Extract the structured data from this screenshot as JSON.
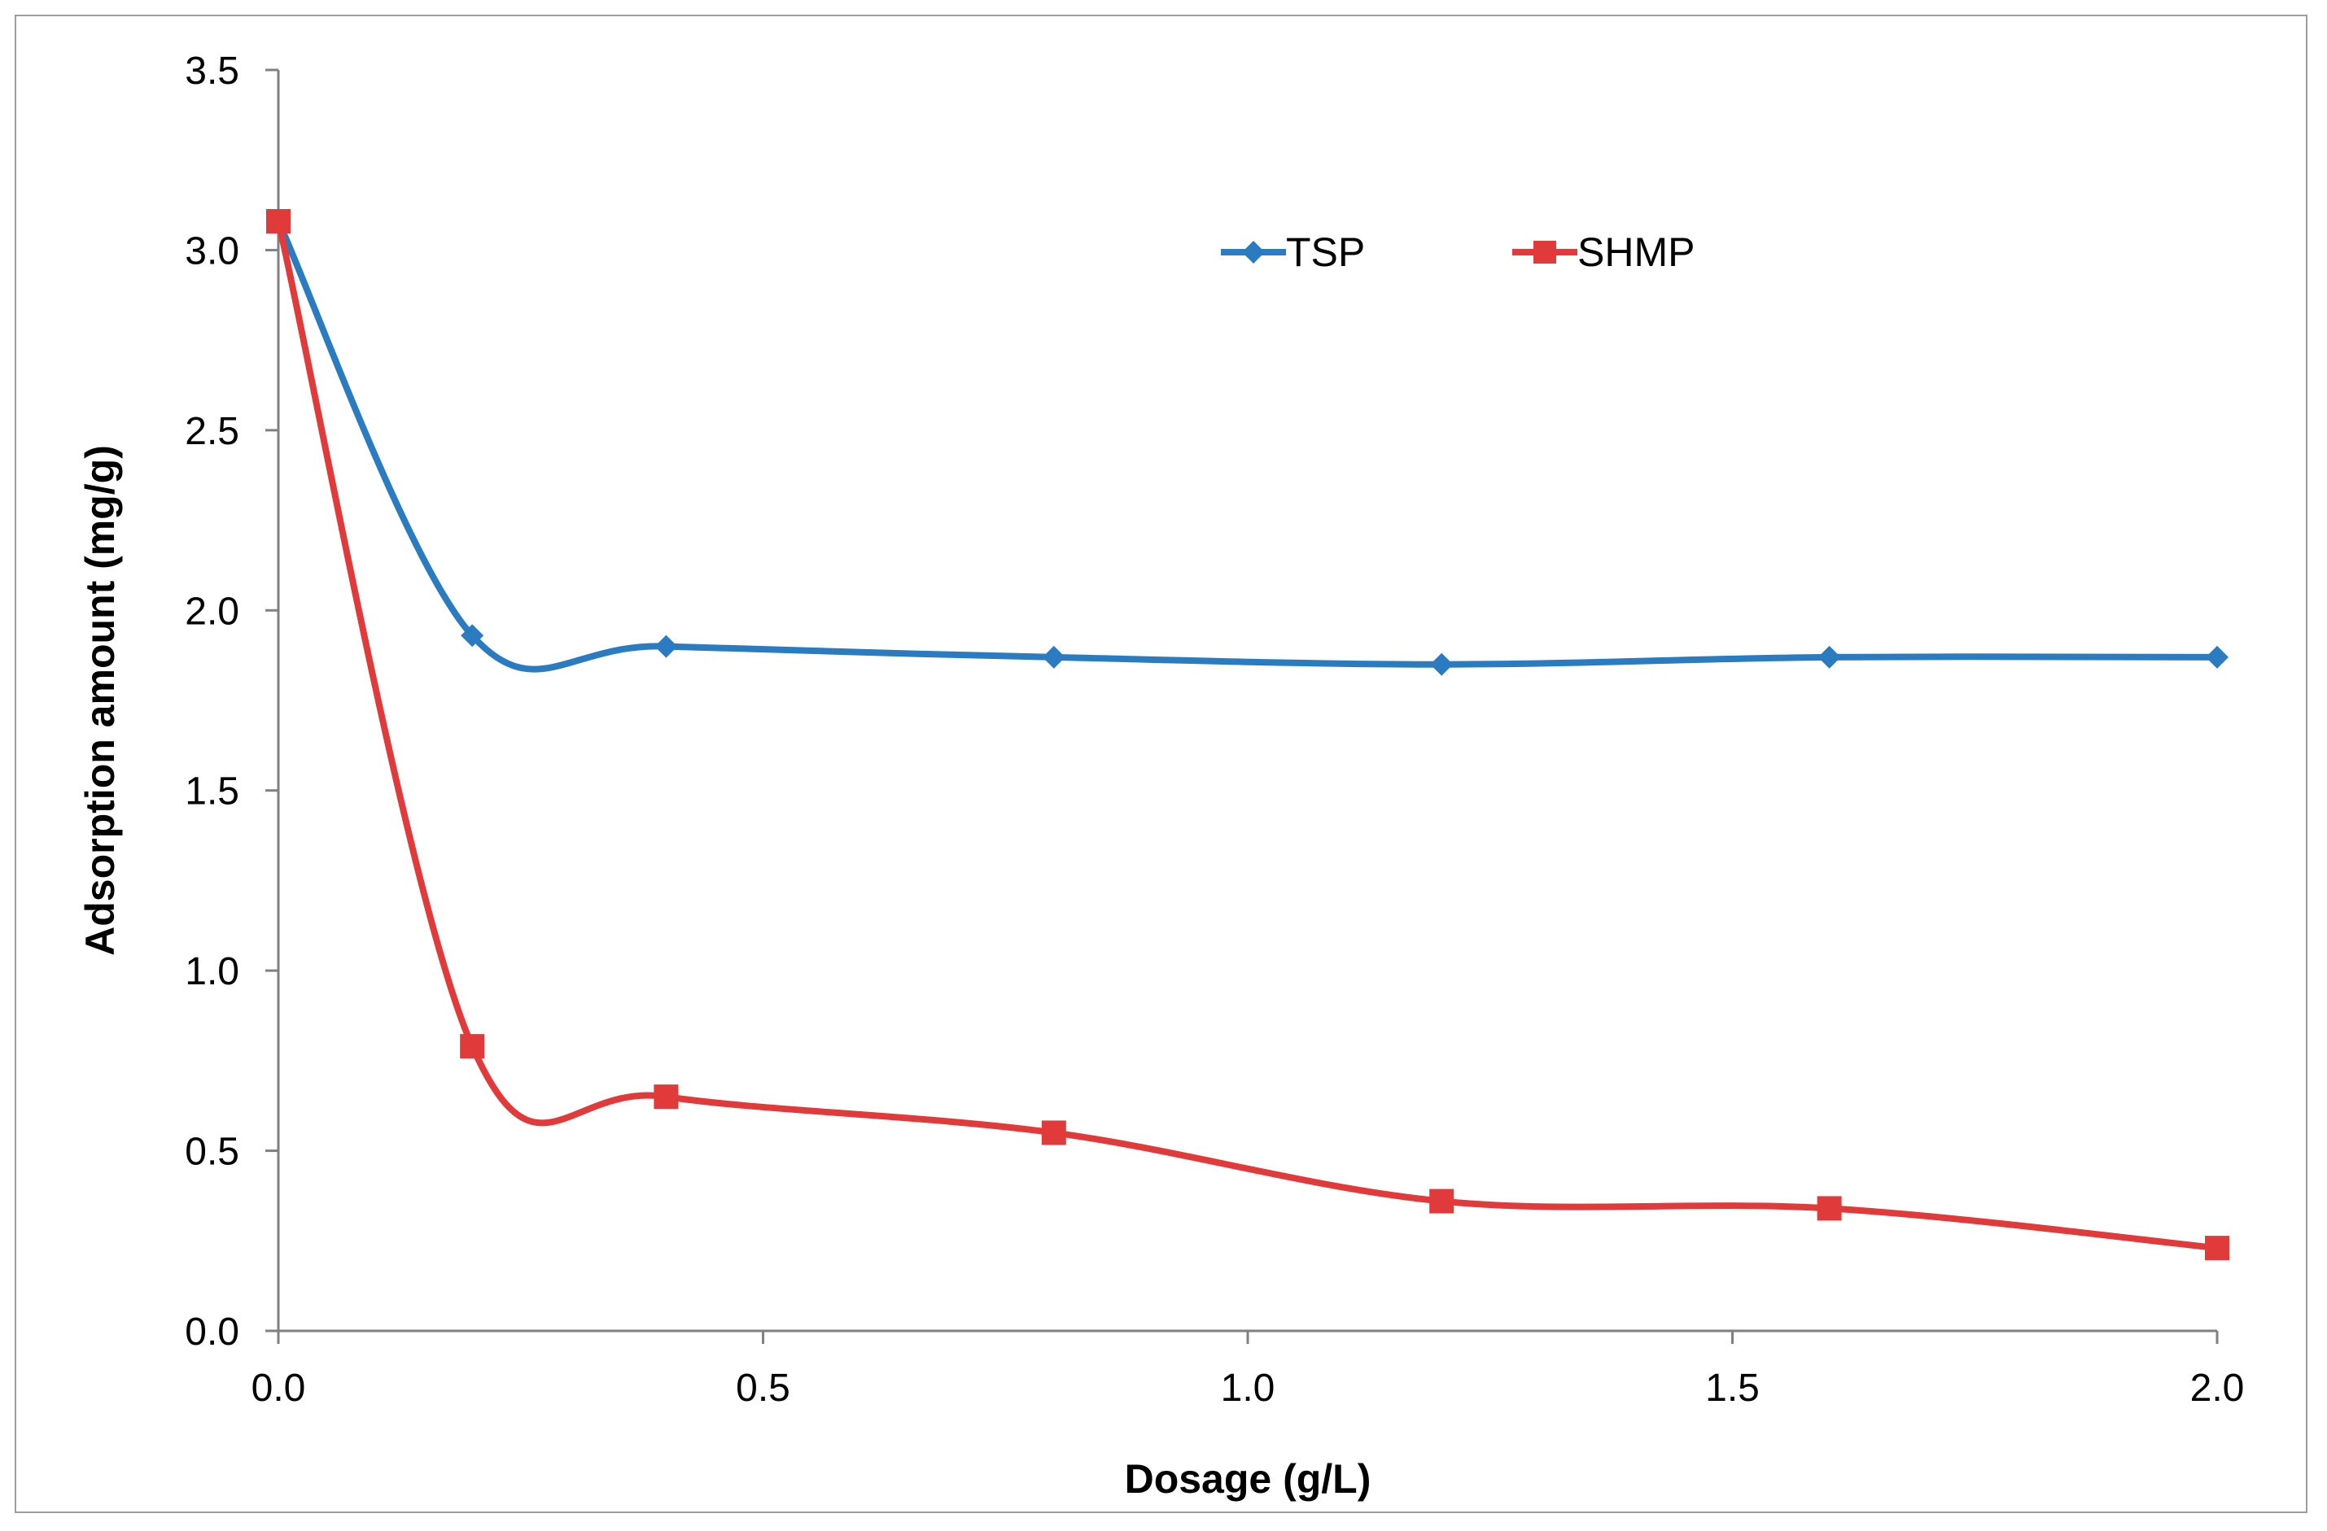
{
  "chart_data": {
    "type": "line",
    "title": "",
    "xlabel": "Dosage (g/L)",
    "ylabel": "Adsorption amount (mg/g)",
    "xlim": [
      0,
      2.0
    ],
    "ylim": [
      0,
      3.5
    ],
    "x_ticks": [
      "0.0",
      "0.5",
      "1.0",
      "1.5",
      "2.0"
    ],
    "y_ticks": [
      "0.0",
      "0.5",
      "1.0",
      "1.5",
      "2.0",
      "2.5",
      "3.0",
      "3.5"
    ],
    "grid": false,
    "legend_position": "top-center",
    "series": [
      {
        "name": "TSP",
        "color": "#2a7bc0",
        "marker": "diamond",
        "x": [
          0,
          0.2,
          0.4,
          0.8,
          1.2,
          1.6,
          2.0
        ],
        "y": [
          3.08,
          1.93,
          1.9,
          1.87,
          1.85,
          1.87,
          1.87
        ]
      },
      {
        "name": "SHMP",
        "color": "#e03a3a",
        "marker": "square",
        "x": [
          0,
          0.2,
          0.4,
          0.8,
          1.2,
          1.6,
          2.0
        ],
        "y": [
          3.08,
          0.79,
          0.65,
          0.55,
          0.36,
          0.34,
          0.23
        ]
      }
    ]
  }
}
